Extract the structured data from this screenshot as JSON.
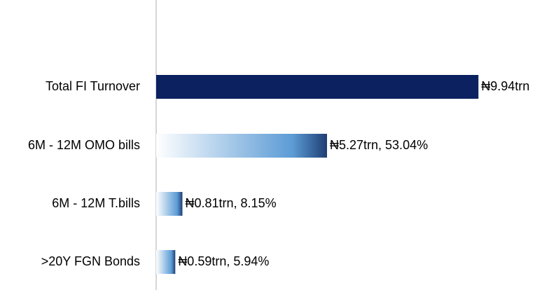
{
  "chart_data": {
    "type": "bar",
    "orientation": "horizontal",
    "categories": [
      "Total FI Turnover",
      "6M - 12M OMO bills",
      "6M - 12M T.bills",
      ">20Y FGN Bonds"
    ],
    "values": [
      9.94,
      5.27,
      0.81,
      0.59
    ],
    "value_labels": [
      "₦9.94trn",
      "₦5.27trn, 53.04%",
      "₦0.81trn, 8.15%",
      "₦0.59trn, 5.94%"
    ],
    "colors": [
      "#0b2160",
      "#1f3e73",
      "#1f3e73",
      "#1f3e73"
    ],
    "gradient": [
      false,
      true,
      true,
      true
    ],
    "xlim": [
      0,
      10
    ]
  }
}
